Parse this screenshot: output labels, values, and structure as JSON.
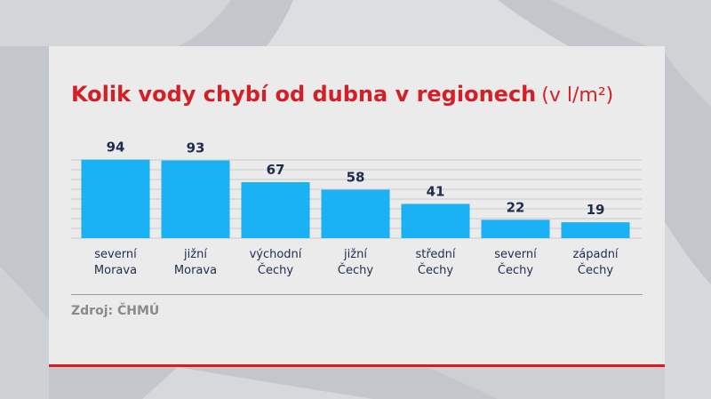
{
  "title": "Kolik vody chybí od dubna v regionech",
  "title_unit": "(v l/m²)",
  "source": "Zdroj: ČHMÚ",
  "colors": {
    "bar": "#1ab2f5",
    "title": "#d41f26",
    "accent_line": "#e0191e",
    "value_label": "#1f2d4d",
    "category_label": "#1f2d4d"
  },
  "chart_data": {
    "type": "bar",
    "title": "Kolik vody chybí od dubna v regionech (v l/m²)",
    "unit": "l/m²",
    "categories": [
      [
        "severní",
        "Morava"
      ],
      [
        "jižní",
        "Morava"
      ],
      [
        "východní",
        "Čechy"
      ],
      [
        "jižní",
        "Čechy"
      ],
      [
        "střední",
        "Čechy"
      ],
      [
        "severní",
        "Čechy"
      ],
      [
        "západní",
        "Čechy"
      ]
    ],
    "values": [
      94,
      93,
      67,
      58,
      41,
      22,
      19
    ],
    "ylim": [
      0,
      100
    ],
    "grid": true,
    "legend": "none",
    "xlabel": "",
    "ylabel": ""
  }
}
